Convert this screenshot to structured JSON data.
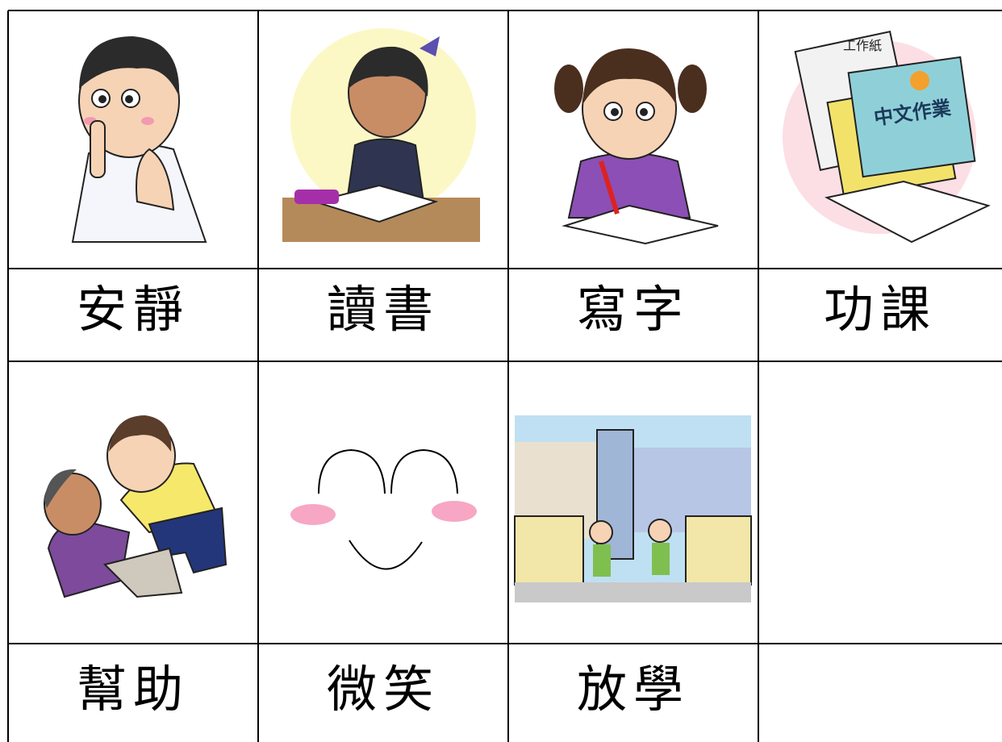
{
  "cards": [
    {
      "label": "安靜"
    },
    {
      "label": "讀書"
    },
    {
      "label": "寫字"
    },
    {
      "label": "功課",
      "illustration_texts": [
        "工作紙",
        "中文作業"
      ]
    },
    {
      "label": "幫助"
    },
    {
      "label": "微笑"
    },
    {
      "label": "放學"
    }
  ]
}
